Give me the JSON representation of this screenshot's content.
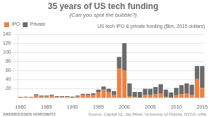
{
  "chart_data": {
    "type": "bar",
    "title": "35 years of US tech funding",
    "subtitle": "(Can you spot the bubble?)",
    "annotations": [
      "US tech IPO & private funding ($bn, 2015 dollars)",
      "ANDREESSEN HOROWITZ",
      "Source: Capital IQ, Jay Ritter, University of Florida, NVCA, eMa"
    ],
    "categories": [
      "1980",
      null,
      null,
      null,
      null,
      "1985",
      null,
      null,
      null,
      null,
      "1990",
      null,
      null,
      null,
      null,
      "1995",
      null,
      null,
      null,
      null,
      "2000",
      null,
      null,
      null,
      null,
      "2005",
      null,
      null,
      null,
      null,
      "2010",
      null,
      null,
      null,
      null,
      "2015"
    ],
    "series": [
      {
        "name": "IPO",
        "color": "#e8834a",
        "values": [
          1,
          2,
          1,
          6,
          3,
          3,
          5,
          2,
          2,
          2,
          1,
          3,
          7,
          7,
          7,
          13,
          18,
          13,
          6,
          65,
          60,
          4,
          2,
          1,
          7,
          6,
          8,
          10,
          2,
          1,
          6,
          8,
          10,
          7,
          42,
          22
        ]
      },
      {
        "name": "Private",
        "color": "#6b6b6b",
        "values": [
          1,
          1,
          1,
          2,
          2,
          2,
          2,
          2,
          2,
          2,
          2,
          2,
          2,
          2,
          3,
          5,
          7,
          7,
          9,
          25,
          60,
          28,
          11,
          12,
          13,
          14,
          16,
          20,
          16,
          11,
          16,
          20,
          22,
          22,
          28,
          48
        ]
      }
    ],
    "stacked": true,
    "ylim": [
      0,
      140
    ],
    "yticks": [
      20,
      40,
      60,
      80,
      100,
      120,
      140
    ],
    "grid": true,
    "legend": "upper left"
  }
}
